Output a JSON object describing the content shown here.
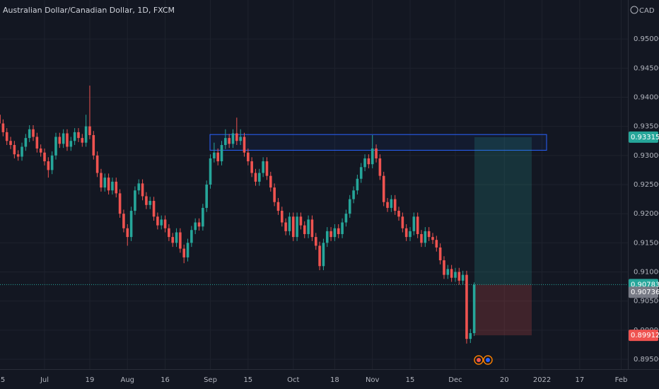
{
  "chart_data": {
    "type": "candlestick",
    "title": "Australian Dollar/Canadian Dollar, 1D, FXCM",
    "currency": "CAD",
    "up_color": "#26a69a",
    "down_color": "#ef5350",
    "ylim": [
      0.8933,
      0.9567
    ],
    "yticks": [
      {
        "value": 0.895,
        "label": "0.89500"
      },
      {
        "value": 0.9,
        "label": "0.90000"
      },
      {
        "value": 0.905,
        "label": "0.90500"
      },
      {
        "value": 0.91,
        "label": "0.91000"
      },
      {
        "value": 0.915,
        "label": "0.91500"
      },
      {
        "value": 0.92,
        "label": "0.92000"
      },
      {
        "value": 0.925,
        "label": "0.92500"
      },
      {
        "value": 0.93,
        "label": "0.93000"
      },
      {
        "value": 0.935,
        "label": "0.93500"
      },
      {
        "value": 0.94,
        "label": "0.94000"
      },
      {
        "value": 0.945,
        "label": "0.94500"
      },
      {
        "value": 0.95,
        "label": "0.95000"
      }
    ],
    "grid": true,
    "categories": [
      "5",
      null,
      null,
      null,
      null,
      null,
      null,
      null,
      null,
      null,
      null,
      null,
      "Jul",
      null,
      null,
      null,
      null,
      null,
      null,
      null,
      null,
      null,
      null,
      null,
      "19",
      null,
      null,
      null,
      null,
      null,
      null,
      null,
      null,
      null,
      "Aug",
      null,
      null,
      null,
      null,
      null,
      null,
      null,
      null,
      null,
      "16",
      null,
      null,
      null,
      null,
      null,
      null,
      null,
      null,
      null,
      null,
      null,
      "Sep",
      null,
      null,
      null,
      null,
      null,
      null,
      null,
      null,
      null,
      "15",
      null,
      null,
      null,
      null,
      null,
      null,
      null,
      null,
      null,
      null,
      null,
      "Oct",
      null,
      null,
      null,
      null,
      null,
      null,
      null,
      null,
      null,
      null,
      "18",
      null,
      null,
      null,
      null,
      null,
      null,
      null,
      null,
      null,
      "Nov",
      null,
      null,
      null,
      null,
      null,
      null,
      null,
      null,
      null,
      "15",
      null,
      null,
      null,
      null,
      null,
      null,
      null,
      null,
      null,
      null,
      null,
      "Dec",
      null,
      null,
      null,
      null,
      null,
      null,
      null,
      null,
      null,
      null,
      null,
      null,
      "20",
      null,
      null,
      null,
      null,
      null,
      null,
      null,
      null,
      null,
      "2022",
      null,
      null,
      null,
      null,
      null,
      null,
      null,
      null,
      null,
      "17",
      null,
      null,
      null,
      null,
      null,
      null,
      null,
      null,
      null,
      null,
      "Feb",
      null
    ],
    "candles": [
      [
        0.937,
        0.9377,
        0.9348,
        0.9355
      ],
      [
        0.9355,
        0.9362,
        0.9333,
        0.934
      ],
      [
        0.934,
        0.9347,
        0.9318,
        0.9325
      ],
      [
        0.9325,
        0.9332,
        0.9311,
        0.9318
      ],
      [
        0.9318,
        0.9325,
        0.9295,
        0.9302
      ],
      [
        0.9302,
        0.9309,
        0.9291,
        0.9298
      ],
      [
        0.9298,
        0.9322,
        0.9291,
        0.9315
      ],
      [
        0.9315,
        0.9337,
        0.9308,
        0.933
      ],
      [
        0.933,
        0.9352,
        0.9323,
        0.9345
      ],
      [
        0.9345,
        0.9352,
        0.9325,
        0.9332
      ],
      [
        0.9332,
        0.9339,
        0.9305,
        0.9312
      ],
      [
        0.9312,
        0.9319,
        0.9298,
        0.9305
      ],
      [
        0.9305,
        0.9312,
        0.9283,
        0.929
      ],
      [
        0.929,
        0.9297,
        0.9262,
        0.9275
      ],
      [
        0.9275,
        0.9307,
        0.9268,
        0.93
      ],
      [
        0.93,
        0.9339,
        0.9293,
        0.9332
      ],
      [
        0.9332,
        0.9339,
        0.9313,
        0.932
      ],
      [
        0.932,
        0.9345,
        0.9313,
        0.9338
      ],
      [
        0.9338,
        0.9345,
        0.9308,
        0.9315
      ],
      [
        0.9315,
        0.9332,
        0.9308,
        0.9325
      ],
      [
        0.9325,
        0.9347,
        0.9318,
        0.934
      ],
      [
        0.934,
        0.9347,
        0.9323,
        0.933
      ],
      [
        0.933,
        0.9337,
        0.9315,
        0.9322
      ],
      [
        0.9322,
        0.937,
        0.9315,
        0.935
      ],
      [
        0.935,
        0.942,
        0.9328,
        0.9335
      ],
      [
        0.9335,
        0.9342,
        0.9293,
        0.93
      ],
      [
        0.93,
        0.9307,
        0.9263,
        0.927
      ],
      [
        0.927,
        0.9277,
        0.9238,
        0.9245
      ],
      [
        0.9245,
        0.9269,
        0.9238,
        0.9262
      ],
      [
        0.9262,
        0.9269,
        0.9233,
        0.924
      ],
      [
        0.924,
        0.9262,
        0.9233,
        0.9255
      ],
      [
        0.9255,
        0.9262,
        0.9228,
        0.9235
      ],
      [
        0.9235,
        0.9242,
        0.9193,
        0.92
      ],
      [
        0.92,
        0.9207,
        0.9168,
        0.9175
      ],
      [
        0.9175,
        0.9182,
        0.9145,
        0.916
      ],
      [
        0.916,
        0.9212,
        0.9153,
        0.9205
      ],
      [
        0.9205,
        0.9247,
        0.9198,
        0.924
      ],
      [
        0.924,
        0.9259,
        0.9233,
        0.9252
      ],
      [
        0.9252,
        0.9259,
        0.9223,
        0.923
      ],
      [
        0.923,
        0.9237,
        0.9208,
        0.9215
      ],
      [
        0.9215,
        0.9229,
        0.9208,
        0.9222
      ],
      [
        0.9222,
        0.9229,
        0.9188,
        0.9195
      ],
      [
        0.9195,
        0.9202,
        0.9173,
        0.918
      ],
      [
        0.918,
        0.9197,
        0.9173,
        0.919
      ],
      [
        0.919,
        0.9197,
        0.9168,
        0.9175
      ],
      [
        0.9175,
        0.9182,
        0.9153,
        0.916
      ],
      [
        0.916,
        0.9167,
        0.9143,
        0.915
      ],
      [
        0.915,
        0.9175,
        0.9143,
        0.9168
      ],
      [
        0.9168,
        0.9175,
        0.9133,
        0.914
      ],
      [
        0.914,
        0.9147,
        0.9115,
        0.9125
      ],
      [
        0.9125,
        0.9157,
        0.9118,
        0.915
      ],
      [
        0.915,
        0.9179,
        0.9143,
        0.9172
      ],
      [
        0.9172,
        0.9192,
        0.9165,
        0.9185
      ],
      [
        0.9185,
        0.9192,
        0.9171,
        0.9178
      ],
      [
        0.9178,
        0.9217,
        0.9171,
        0.921
      ],
      [
        0.921,
        0.9257,
        0.9203,
        0.925
      ],
      [
        0.925,
        0.9302,
        0.9243,
        0.9295
      ],
      [
        0.9295,
        0.9322,
        0.9288,
        0.9305
      ],
      [
        0.9305,
        0.9312,
        0.9283,
        0.929
      ],
      [
        0.929,
        0.9325,
        0.9283,
        0.9318
      ],
      [
        0.9318,
        0.9345,
        0.9311,
        0.933
      ],
      [
        0.933,
        0.9337,
        0.9313,
        0.932
      ],
      [
        0.932,
        0.9345,
        0.9313,
        0.9338
      ],
      [
        0.9338,
        0.9365,
        0.9318,
        0.9325
      ],
      [
        0.9325,
        0.9345,
        0.9318,
        0.9332
      ],
      [
        0.9332,
        0.9339,
        0.9298,
        0.9305
      ],
      [
        0.9305,
        0.9312,
        0.9283,
        0.929
      ],
      [
        0.929,
        0.9297,
        0.9263,
        0.927
      ],
      [
        0.927,
        0.9277,
        0.9248,
        0.9255
      ],
      [
        0.9255,
        0.9277,
        0.9248,
        0.927
      ],
      [
        0.927,
        0.9297,
        0.9263,
        0.929
      ],
      [
        0.929,
        0.9297,
        0.9258,
        0.9265
      ],
      [
        0.9265,
        0.9272,
        0.9238,
        0.9245
      ],
      [
        0.9245,
        0.9252,
        0.9213,
        0.922
      ],
      [
        0.922,
        0.9227,
        0.9198,
        0.9205
      ],
      [
        0.9205,
        0.9212,
        0.9178,
        0.9185
      ],
      [
        0.9185,
        0.9192,
        0.9163,
        0.917
      ],
      [
        0.917,
        0.9202,
        0.9163,
        0.9195
      ],
      [
        0.9195,
        0.9202,
        0.9153,
        0.916
      ],
      [
        0.916,
        0.9202,
        0.9153,
        0.9195
      ],
      [
        0.9195,
        0.9202,
        0.9173,
        0.918
      ],
      [
        0.918,
        0.9187,
        0.9158,
        0.9165
      ],
      [
        0.9165,
        0.9197,
        0.9158,
        0.919
      ],
      [
        0.919,
        0.9197,
        0.9153,
        0.916
      ],
      [
        0.916,
        0.9167,
        0.9138,
        0.9145
      ],
      [
        0.9145,
        0.9152,
        0.9103,
        0.911
      ],
      [
        0.911,
        0.9157,
        0.9103,
        0.915
      ],
      [
        0.915,
        0.9177,
        0.9143,
        0.917
      ],
      [
        0.917,
        0.9177,
        0.9153,
        0.916
      ],
      [
        0.916,
        0.9182,
        0.9153,
        0.9175
      ],
      [
        0.9175,
        0.9182,
        0.9158,
        0.9165
      ],
      [
        0.9165,
        0.9192,
        0.9158,
        0.9185
      ],
      [
        0.9185,
        0.9207,
        0.9178,
        0.92
      ],
      [
        0.92,
        0.9232,
        0.9193,
        0.9225
      ],
      [
        0.9225,
        0.9247,
        0.9218,
        0.924
      ],
      [
        0.924,
        0.9267,
        0.9233,
        0.926
      ],
      [
        0.926,
        0.9287,
        0.9253,
        0.928
      ],
      [
        0.928,
        0.9302,
        0.9273,
        0.9295
      ],
      [
        0.9295,
        0.9302,
        0.9278,
        0.9285
      ],
      [
        0.9285,
        0.9335,
        0.9278,
        0.9312
      ],
      [
        0.9312,
        0.9319,
        0.9288,
        0.9295
      ],
      [
        0.9295,
        0.9302,
        0.9258,
        0.9265
      ],
      [
        0.9265,
        0.9272,
        0.9213,
        0.922
      ],
      [
        0.922,
        0.9227,
        0.9203,
        0.921
      ],
      [
        0.921,
        0.9232,
        0.9203,
        0.9225
      ],
      [
        0.9225,
        0.9232,
        0.9198,
        0.9205
      ],
      [
        0.9205,
        0.9212,
        0.9188,
        0.9195
      ],
      [
        0.9195,
        0.9202,
        0.9168,
        0.9175
      ],
      [
        0.9175,
        0.9182,
        0.9153,
        0.916
      ],
      [
        0.916,
        0.9177,
        0.9153,
        0.917
      ],
      [
        0.917,
        0.9202,
        0.9163,
        0.9195
      ],
      [
        0.9195,
        0.9202,
        0.9158,
        0.9165
      ],
      [
        0.9165,
        0.9172,
        0.9143,
        0.915
      ],
      [
        0.915,
        0.9177,
        0.9143,
        0.917
      ],
      [
        0.917,
        0.9177,
        0.9153,
        0.916
      ],
      [
        0.916,
        0.9167,
        0.9148,
        0.9155
      ],
      [
        0.9155,
        0.9162,
        0.9135,
        0.9142
      ],
      [
        0.9142,
        0.9149,
        0.9113,
        0.912
      ],
      [
        0.912,
        0.9127,
        0.9088,
        0.9095
      ],
      [
        0.9095,
        0.9112,
        0.9088,
        0.9105
      ],
      [
        0.9105,
        0.9112,
        0.9083,
        0.909
      ],
      [
        0.909,
        0.9107,
        0.9083,
        0.91
      ],
      [
        0.91,
        0.9107,
        0.9078,
        0.9085
      ],
      [
        0.9085,
        0.9102,
        0.9078,
        0.9095
      ],
      [
        0.9095,
        0.9102,
        0.8977,
        0.8985
      ],
      [
        0.8985,
        0.9002,
        0.8978,
        0.8995
      ],
      [
        0.8995,
        0.9082,
        0.899,
        0.9078
      ],
      null,
      null,
      null,
      null,
      null,
      null,
      null,
      null,
      null,
      null,
      null,
      null,
      null,
      null,
      null,
      null,
      null,
      null,
      null,
      null,
      null,
      null,
      null,
      null,
      null,
      null,
      null,
      null,
      null,
      null,
      null,
      null,
      null,
      null,
      null,
      null,
      null,
      null,
      null,
      null
    ],
    "zone": {
      "top": 0.9336,
      "bottom": 0.9309
    },
    "price_tags": [
      {
        "value": 0.93315,
        "color": "#26a69a"
      },
      {
        "value": 0.90783,
        "color": "#26a69a"
      },
      {
        "value": 0.90736,
        "color": "#787b86"
      },
      {
        "value": 0.89912,
        "color": "#ef5350"
      }
    ]
  }
}
